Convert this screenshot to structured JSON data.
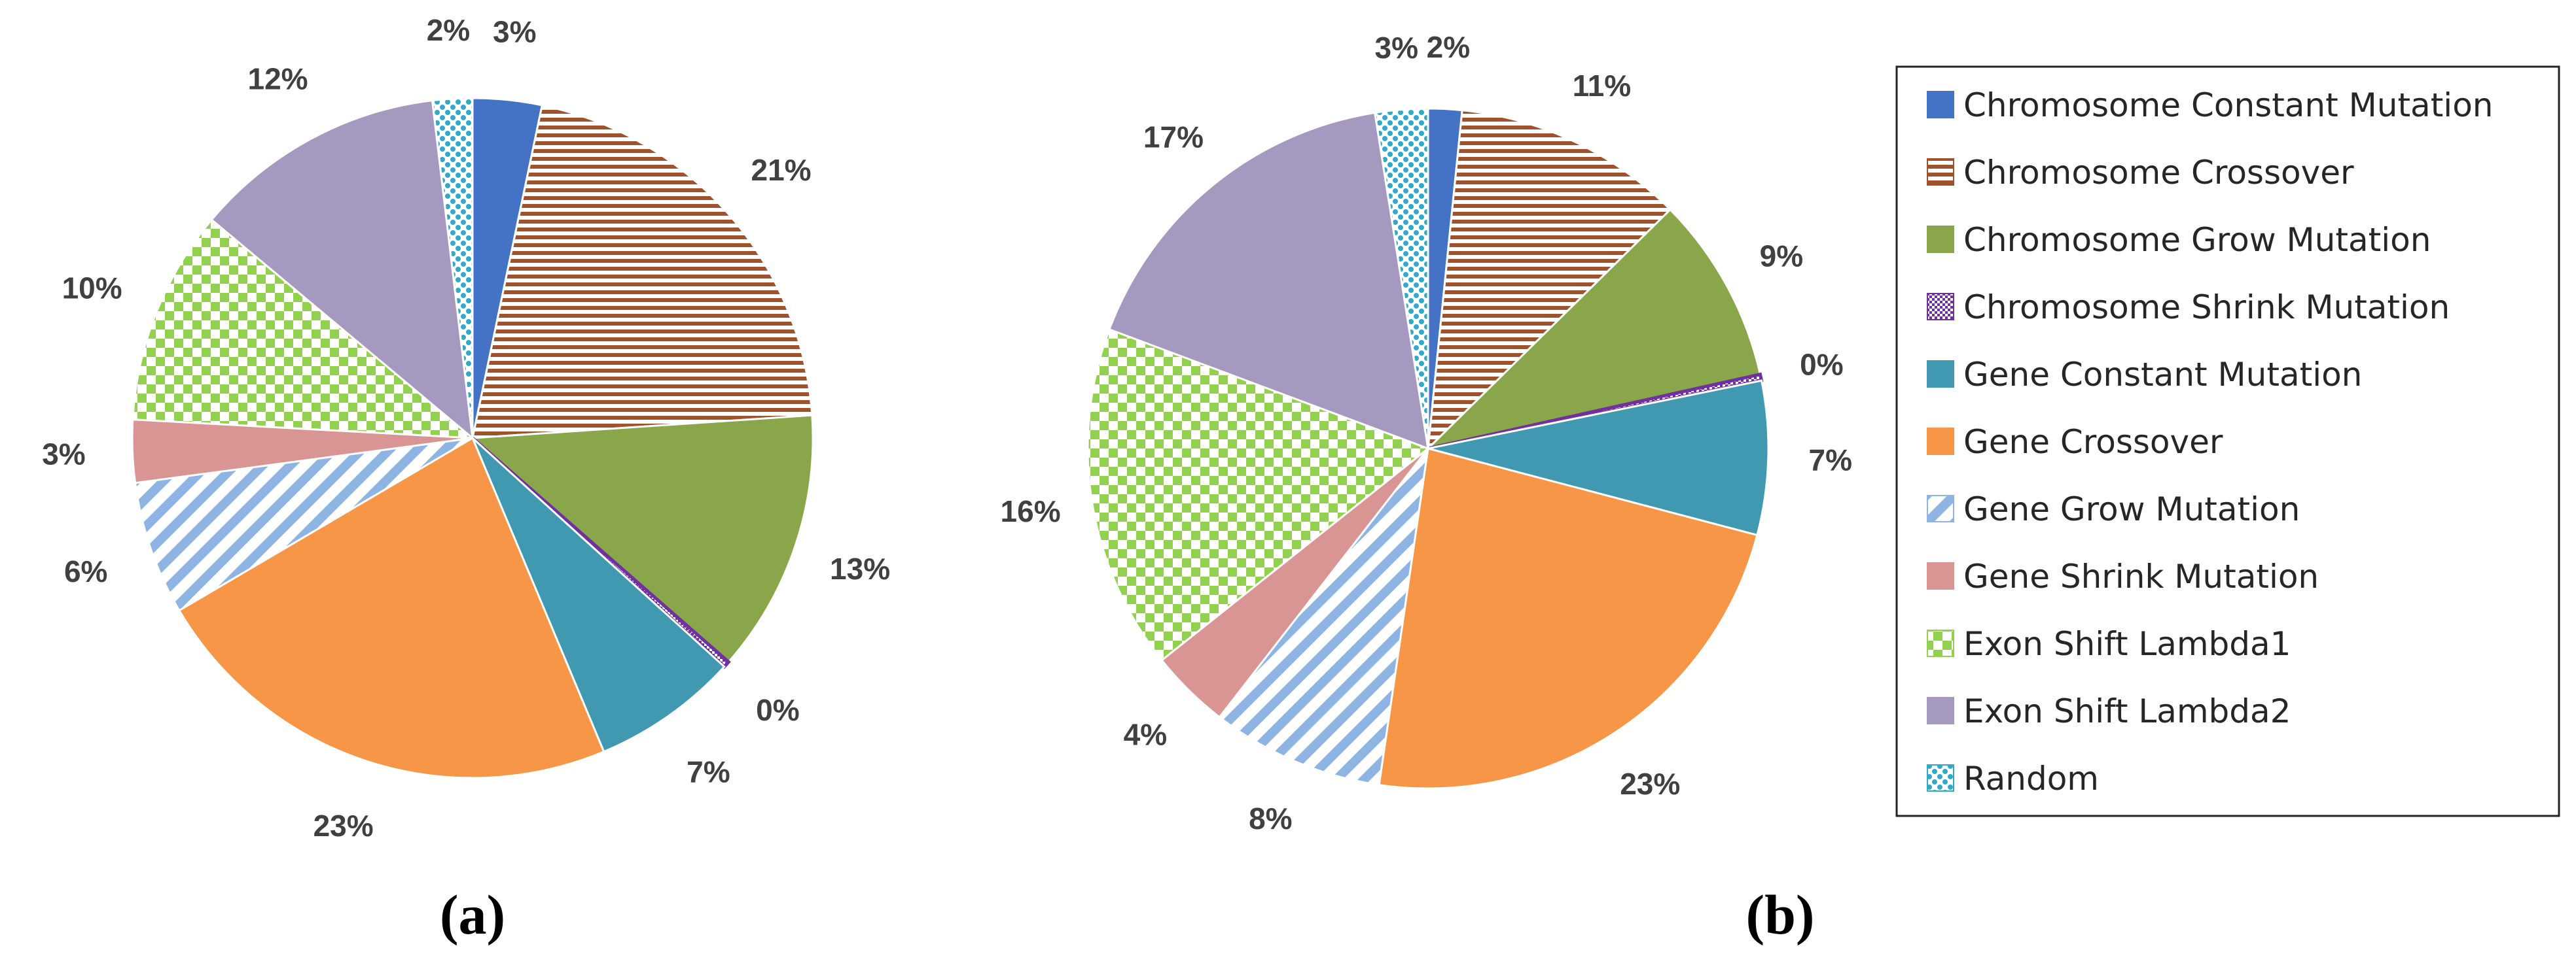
{
  "chart_data": [
    {
      "type": "pie",
      "panel": "(a)",
      "categories": [
        "Chromosome Constant Mutation",
        "Chromosome Crossover",
        "Chromosome Grow Mutation",
        "Chromosome Shrink Mutation",
        "Gene Constant Mutation",
        "Gene Crossover",
        "Gene Grow Mutation",
        "Gene Shrink Mutation",
        "Exon Shift Lambda1",
        "Exon Shift Lambda2",
        "Random"
      ],
      "values": [
        3.3,
        20.8,
        12.6,
        0.3,
        7.0,
        23.0,
        6.4,
        3.0,
        10.3,
        12.1,
        1.9
      ],
      "labels": [
        "3%",
        "21%",
        "13%",
        "0%",
        "7%",
        "23%",
        "6%",
        "3%",
        "10%",
        "12%",
        "2%"
      ]
    },
    {
      "type": "pie",
      "panel": "(b)",
      "categories": [
        "Chromosome Constant Mutation",
        "Chromosome Crossover",
        "Chromosome Grow Mutation",
        "Chromosome Shrink Mutation",
        "Gene Constant Mutation",
        "Gene Crossover",
        "Gene Grow Mutation",
        "Gene Shrink Mutation",
        "Exon Shift Lambda1",
        "Exon Shift Lambda2",
        "Random"
      ],
      "values": [
        1.6,
        11.0,
        8.9,
        0.3,
        7.3,
        23.2,
        8.2,
        3.8,
        16.4,
        16.8,
        2.5
      ],
      "labels": [
        "2%",
        "11%",
        "9%",
        "0%",
        "7%",
        "23%",
        "8%",
        "4%",
        "16%",
        "17%",
        "3%"
      ]
    }
  ],
  "legend": {
    "items": [
      {
        "label": "Chromosome Constant Mutation",
        "fill": "solid-blue"
      },
      {
        "label": "Chromosome Crossover",
        "fill": "hstripe-brown"
      },
      {
        "label": "Chromosome Grow Mutation",
        "fill": "solid-green"
      },
      {
        "label": "Chromosome Shrink Mutation",
        "fill": "check-purple"
      },
      {
        "label": "Gene Constant Mutation",
        "fill": "solid-teal"
      },
      {
        "label": "Gene Crossover",
        "fill": "solid-orange"
      },
      {
        "label": "Gene Grow Mutation",
        "fill": "diag-lightblue"
      },
      {
        "label": "Gene Shrink Mutation",
        "fill": "solid-rose"
      },
      {
        "label": "Exon Shift Lambda1",
        "fill": "check-lightgreen"
      },
      {
        "label": "Exon Shift Lambda2",
        "fill": "solid-lavender"
      },
      {
        "label": "Random",
        "fill": "dots-cyan"
      }
    ]
  },
  "colors": {
    "blue": "#4472C4",
    "brown": "#A0522D",
    "green": "#8AA64B",
    "purple": "#7030A0",
    "teal": "#4199B1",
    "orange": "#F79646",
    "lightblue": "#8DB4E2",
    "rose": "#D99594",
    "lightgreen": "#92D050",
    "lavender": "#A699C0",
    "cyan": "#31A9C9"
  },
  "panel_labels": [
    "(a)",
    "(b)"
  ]
}
